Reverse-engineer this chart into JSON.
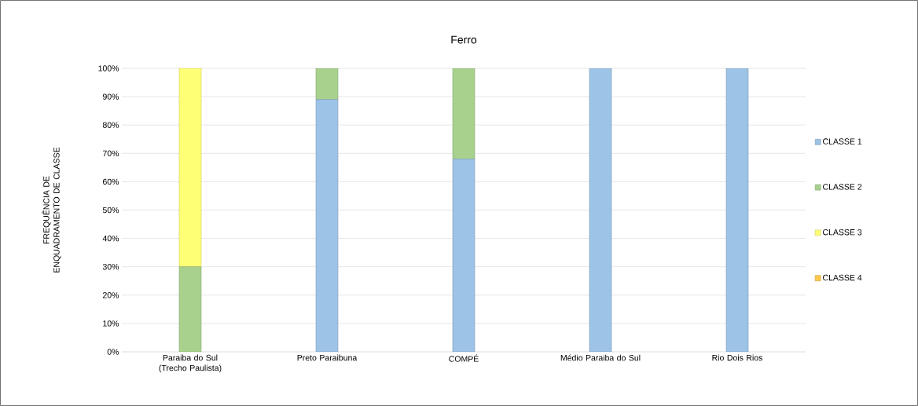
{
  "chart_data": {
    "type": "bar",
    "title": "Ferro",
    "ylabel": "FREQUÊNCIA DE ENQUADRAMENTO DE CLASSE",
    "stacked": true,
    "categories": [
      "Paraiba do Sul (Trecho Paulista)",
      "Preto Paraibuna",
      "COMPÉ",
      "Médio Paraiba do Sul",
      "Rio Dois Rios"
    ],
    "series": [
      {
        "name": "CLASSE 1",
        "color": "#9dc3e6",
        "values": [
          0,
          89,
          68,
          100,
          100
        ]
      },
      {
        "name": "CLASSE 2",
        "color": "#a9d18e",
        "values": [
          30,
          11,
          32,
          0,
          0
        ]
      },
      {
        "name": "CLASSE 3",
        "color": "#ffff75",
        "values": [
          70,
          0,
          0,
          0,
          0
        ]
      },
      {
        "name": "CLASSE 4",
        "color": "#ffc94d",
        "values": [
          0,
          0,
          0,
          0,
          0
        ]
      }
    ],
    "ylim": [
      0,
      100
    ],
    "yticks": [
      {
        "value": 0,
        "label": "0%"
      },
      {
        "value": 10,
        "label": "10%"
      },
      {
        "value": 20,
        "label": "20%"
      },
      {
        "value": 30,
        "label": "30%"
      },
      {
        "value": 40,
        "label": "40%"
      },
      {
        "value": 50,
        "label": "50%"
      },
      {
        "value": 60,
        "label": "60%"
      },
      {
        "value": 70,
        "label": "70%"
      },
      {
        "value": 80,
        "label": "80%"
      },
      {
        "value": 90,
        "label": "90%"
      },
      {
        "value": 100,
        "label": "100%"
      }
    ],
    "grid": "y",
    "legend": "right"
  }
}
